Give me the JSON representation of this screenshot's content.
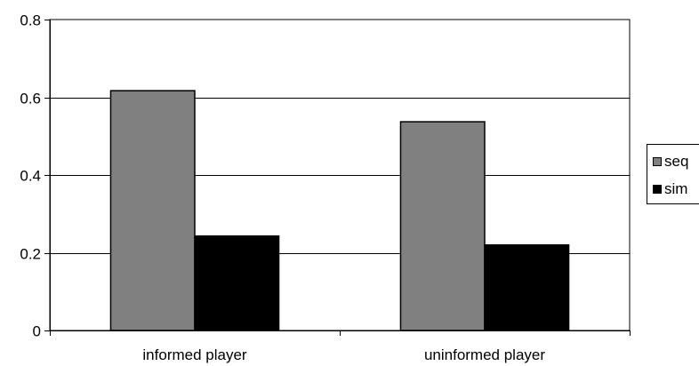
{
  "chart_data": {
    "type": "bar",
    "categories": [
      "informed player",
      "uninformed player"
    ],
    "series": [
      {
        "name": "seq",
        "values": [
          0.617,
          0.537
        ],
        "color": "#808080"
      },
      {
        "name": "sim",
        "values": [
          0.243,
          0.22
        ],
        "color": "#000000"
      }
    ],
    "ylim": [
      0,
      0.8
    ],
    "yticks": [
      "0",
      "0.2",
      "0.4",
      "0.6",
      "0.8"
    ],
    "ytick_values": [
      0,
      0.2,
      0.4,
      0.6,
      0.8
    ],
    "grid": true,
    "legend_position": "right"
  }
}
